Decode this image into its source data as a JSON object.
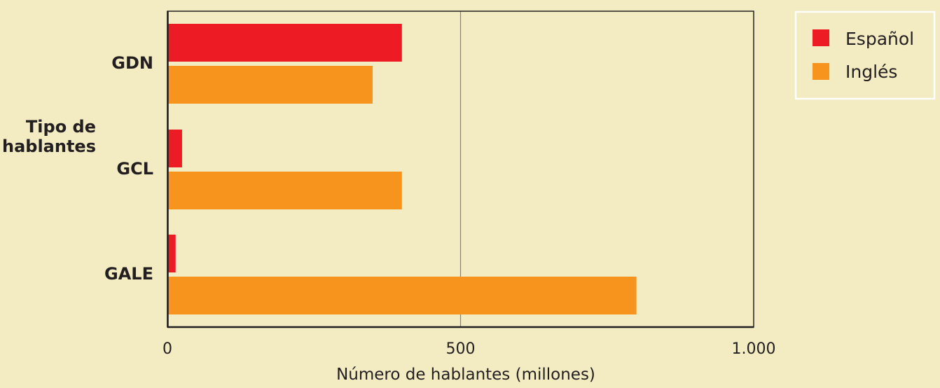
{
  "chart_data": {
    "type": "bar",
    "orientation": "horizontal",
    "title": "",
    "categories": [
      "GDN",
      "GCL",
      "GALE"
    ],
    "series": [
      {
        "name": "Español",
        "color": "#ed1c24",
        "values": [
          400,
          25,
          14
        ]
      },
      {
        "name": "Inglés",
        "color": "#f7941d",
        "values": [
          350,
          400,
          800
        ]
      }
    ],
    "xlabel": "Número de hablantes (millones)",
    "ylabel": [
      "Tipo de",
      "hablantes"
    ],
    "xlim": [
      0,
      1000
    ],
    "xticks": [
      0,
      500,
      1000
    ],
    "xtick_labels": [
      "0",
      "500",
      "1.000"
    ],
    "grid": "vertical line at 500",
    "legend_position": "top-right"
  }
}
